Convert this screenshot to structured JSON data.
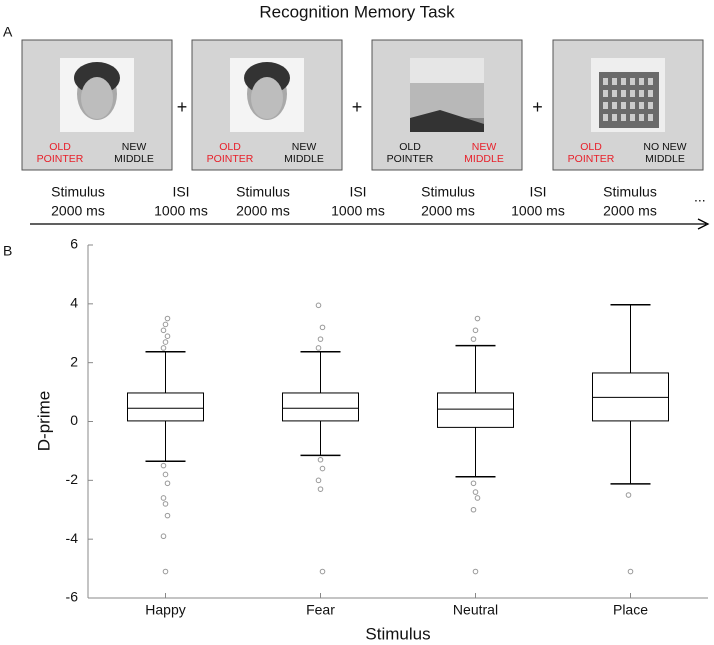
{
  "panel_a": {
    "letter": "A",
    "title": "Recognition Memory Task",
    "trials": [
      {
        "left": [
          "OLD",
          "POINTER"
        ],
        "right": [
          "NEW",
          "MIDDLE"
        ],
        "highlight": "left",
        "image": "face"
      },
      {
        "left": [
          "OLD",
          "POINTER"
        ],
        "right": [
          "NEW",
          "MIDDLE"
        ],
        "highlight": "left",
        "image": "face"
      },
      {
        "left": [
          "OLD",
          "POINTER"
        ],
        "right": [
          "NEW",
          "MIDDLE"
        ],
        "highlight": "right",
        "image": "scene"
      },
      {
        "left": [
          "OLD",
          "POINTER"
        ],
        "right": [
          "NO NEW",
          "MIDDLE"
        ],
        "highlight": "left",
        "image": "building"
      }
    ],
    "fixation": "+",
    "highlight_color": "#e8202a",
    "timeline": [
      {
        "label": "Stimulus",
        "duration": "2000 ms"
      },
      {
        "label": "ISI",
        "duration": "1000 ms"
      },
      {
        "label": "Stimulus",
        "duration": "2000 ms"
      },
      {
        "label": "ISI",
        "duration": "1000 ms"
      },
      {
        "label": "Stimulus",
        "duration": "2000 ms"
      },
      {
        "label": "ISI",
        "duration": "1000 ms"
      },
      {
        "label": "Stimulus",
        "duration": "2000 ms"
      }
    ],
    "continuation": "..."
  },
  "panel_b": {
    "letter": "B"
  },
  "chart_data": {
    "type": "box",
    "x_label": "Stimulus",
    "y_label": "D-prime",
    "categories": [
      "Happy",
      "Fear",
      "Neutral",
      "Place"
    ],
    "boxes": [
      {
        "low": -1.35,
        "q1": 0.02,
        "median": 0.45,
        "q3": 0.97,
        "high": 2.37,
        "outliers": [
          2.5,
          2.7,
          2.9,
          3.1,
          3.3,
          3.5,
          -1.5,
          -1.8,
          -2.1,
          -2.6,
          -2.8,
          -3.2,
          -3.9,
          -5.1
        ]
      },
      {
        "low": -1.15,
        "q1": 0.02,
        "median": 0.45,
        "q3": 0.97,
        "high": 2.37,
        "outliers": [
          2.5,
          2.8,
          3.2,
          3.95,
          -1.3,
          -1.6,
          -2.0,
          -2.3,
          -5.1
        ]
      },
      {
        "low": -1.88,
        "q1": -0.2,
        "median": 0.42,
        "q3": 0.97,
        "high": 2.58,
        "outliers": [
          2.8,
          3.1,
          3.5,
          -2.1,
          -2.4,
          -2.6,
          -3.0,
          -5.1
        ]
      },
      {
        "low": -2.12,
        "q1": 0.02,
        "median": 0.82,
        "q3": 1.65,
        "high": 3.97,
        "outliers": [
          -2.5,
          -5.1
        ]
      }
    ],
    "box_color": "#000000",
    "point_color": "#999999",
    "ylim": [
      -6,
      6
    ],
    "yticks": [
      -6,
      -4,
      -2,
      0,
      2,
      4,
      6
    ]
  }
}
